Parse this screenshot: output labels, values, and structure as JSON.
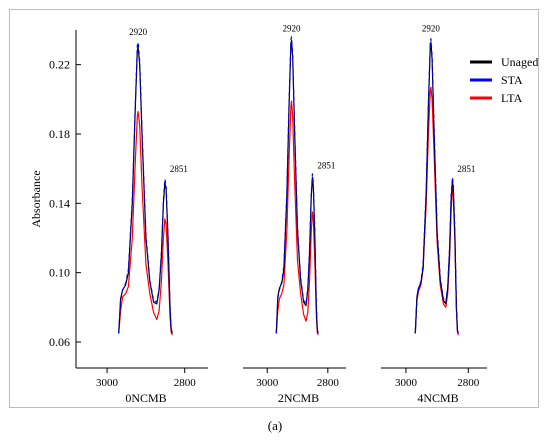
{
  "figure_caption": "(a)",
  "chart_data": {
    "type": "line",
    "ylabel": "Absorbance",
    "y_ticks": [
      0.06,
      0.1,
      0.14,
      0.18,
      0.22
    ],
    "ylim": [
      0.045,
      0.24
    ],
    "x_reversed": true,
    "legend": {
      "placement": "top-right",
      "entries": [
        {
          "name": "Unaged",
          "color": "#000000"
        },
        {
          "name": "STA",
          "color": "#0000ff"
        },
        {
          "name": "LTA",
          "color": "#ff0000"
        }
      ]
    },
    "panels": [
      {
        "xlabel": "0NCMB",
        "x_ticks": [
          3000,
          2800
        ],
        "xlim": [
          3080,
          2740
        ],
        "peak_labels": [
          {
            "text": "2920",
            "x": 2920,
            "y": 0.236
          },
          {
            "text": "2851",
            "x": 2851,
            "y": 0.157
          }
        ],
        "series": [
          {
            "name": "Unaged",
            "x": [
              2970,
              2965,
              2960,
              2952,
              2945,
              2935,
              2928,
              2922,
              2920,
              2916,
              2910,
              2900,
              2890,
              2880,
              2872,
              2866,
              2860,
              2855,
              2851,
              2848,
              2843,
              2838,
              2835,
              2832
            ],
            "y": [
              0.065,
              0.085,
              0.09,
              0.093,
              0.1,
              0.14,
              0.19,
              0.228,
              0.23,
              0.22,
              0.18,
              0.12,
              0.095,
              0.083,
              0.082,
              0.09,
              0.11,
              0.14,
              0.152,
              0.148,
              0.12,
              0.08,
              0.068,
              0.065
            ]
          },
          {
            "name": "STA",
            "x": [
              2970,
              2965,
              2960,
              2952,
              2945,
              2935,
              2928,
              2922,
              2920,
              2916,
              2910,
              2900,
              2890,
              2880,
              2872,
              2866,
              2860,
              2855,
              2851,
              2848,
              2843,
              2838,
              2835,
              2832
            ],
            "y": [
              0.065,
              0.084,
              0.09,
              0.094,
              0.102,
              0.142,
              0.192,
              0.231,
              0.233,
              0.222,
              0.182,
              0.122,
              0.096,
              0.084,
              0.083,
              0.091,
              0.112,
              0.142,
              0.154,
              0.15,
              0.122,
              0.081,
              0.068,
              0.065
            ]
          },
          {
            "name": "LTA",
            "x": [
              2970,
              2965,
              2960,
              2952,
              2945,
              2935,
              2928,
              2922,
              2920,
              2916,
              2910,
              2900,
              2890,
              2880,
              2872,
              2866,
              2860,
              2855,
              2851,
              2848,
              2843,
              2838,
              2835,
              2832
            ],
            "y": [
              0.065,
              0.078,
              0.086,
              0.088,
              0.092,
              0.12,
              0.16,
              0.19,
              0.193,
              0.185,
              0.15,
              0.105,
              0.088,
              0.077,
              0.073,
              0.078,
              0.095,
              0.12,
              0.131,
              0.128,
              0.105,
              0.075,
              0.066,
              0.064
            ]
          }
        ]
      },
      {
        "xlabel": "2NCMB",
        "x_ticks": [
          3000,
          2800
        ],
        "xlim": [
          3080,
          2740
        ],
        "peak_labels": [
          {
            "text": "2920",
            "x": 2920,
            "y": 0.238
          },
          {
            "text": "2851",
            "x": 2851,
            "y": 0.159
          }
        ],
        "series": [
          {
            "name": "Unaged",
            "x": [
              2970,
              2965,
              2960,
              2952,
              2945,
              2935,
              2928,
              2922,
              2920,
              2916,
              2910,
              2900,
              2890,
              2880,
              2872,
              2866,
              2860,
              2855,
              2851,
              2848,
              2843,
              2838,
              2835,
              2832
            ],
            "y": [
              0.065,
              0.086,
              0.091,
              0.094,
              0.102,
              0.145,
              0.195,
              0.232,
              0.234,
              0.224,
              0.184,
              0.124,
              0.096,
              0.083,
              0.081,
              0.09,
              0.112,
              0.143,
              0.155,
              0.15,
              0.122,
              0.081,
              0.068,
              0.065
            ]
          },
          {
            "name": "STA",
            "x": [
              2970,
              2965,
              2960,
              2952,
              2945,
              2935,
              2928,
              2922,
              2920,
              2916,
              2910,
              2900,
              2890,
              2880,
              2872,
              2866,
              2860,
              2855,
              2851,
              2848,
              2843,
              2838,
              2835,
              2832
            ],
            "y": [
              0.065,
              0.085,
              0.09,
              0.095,
              0.104,
              0.147,
              0.197,
              0.234,
              0.236,
              0.226,
              0.186,
              0.126,
              0.097,
              0.084,
              0.082,
              0.091,
              0.114,
              0.145,
              0.157,
              0.152,
              0.124,
              0.082,
              0.068,
              0.065
            ]
          },
          {
            "name": "LTA",
            "x": [
              2970,
              2965,
              2960,
              2952,
              2945,
              2935,
              2928,
              2922,
              2920,
              2916,
              2910,
              2900,
              2890,
              2880,
              2872,
              2866,
              2860,
              2855,
              2851,
              2848,
              2843,
              2838,
              2835,
              2832
            ],
            "y": [
              0.065,
              0.078,
              0.085,
              0.088,
              0.093,
              0.125,
              0.165,
              0.196,
              0.199,
              0.19,
              0.155,
              0.107,
              0.088,
              0.076,
              0.072,
              0.077,
              0.096,
              0.123,
              0.135,
              0.131,
              0.107,
              0.076,
              0.066,
              0.064
            ]
          }
        ]
      },
      {
        "xlabel": "4NCMB",
        "x_ticks": [
          3000,
          2800
        ],
        "xlim": [
          3080,
          2740
        ],
        "peak_labels": [
          {
            "text": "2920",
            "x": 2920,
            "y": 0.238
          },
          {
            "text": "2851",
            "x": 2851,
            "y": 0.157
          }
        ],
        "series": [
          {
            "name": "Unaged",
            "x": [
              2970,
              2965,
              2960,
              2952,
              2945,
              2935,
              2928,
              2922,
              2920,
              2916,
              2910,
              2900,
              2890,
              2880,
              2872,
              2866,
              2860,
              2855,
              2851,
              2848,
              2843,
              2838,
              2835,
              2832
            ],
            "y": [
              0.065,
              0.086,
              0.091,
              0.094,
              0.103,
              0.146,
              0.196,
              0.231,
              0.233,
              0.223,
              0.183,
              0.123,
              0.096,
              0.084,
              0.082,
              0.091,
              0.113,
              0.142,
              0.153,
              0.149,
              0.121,
              0.08,
              0.067,
              0.065
            ]
          },
          {
            "name": "STA",
            "x": [
              2970,
              2965,
              2960,
              2952,
              2945,
              2935,
              2928,
              2922,
              2920,
              2916,
              2910,
              2900,
              2890,
              2880,
              2872,
              2866,
              2860,
              2855,
              2851,
              2848,
              2843,
              2838,
              2835,
              2832
            ],
            "y": [
              0.065,
              0.085,
              0.09,
              0.095,
              0.105,
              0.148,
              0.198,
              0.233,
              0.235,
              0.225,
              0.185,
              0.125,
              0.097,
              0.085,
              0.083,
              0.092,
              0.115,
              0.144,
              0.155,
              0.151,
              0.123,
              0.081,
              0.067,
              0.065
            ]
          },
          {
            "name": "LTA",
            "x": [
              2970,
              2965,
              2960,
              2952,
              2945,
              2935,
              2928,
              2922,
              2920,
              2916,
              2910,
              2900,
              2890,
              2880,
              2872,
              2866,
              2860,
              2855,
              2851,
              2848,
              2843,
              2838,
              2835,
              2832
            ],
            "y": [
              0.065,
              0.084,
              0.089,
              0.093,
              0.102,
              0.14,
              0.18,
              0.205,
              0.207,
              0.2,
              0.17,
              0.118,
              0.093,
              0.082,
              0.08,
              0.088,
              0.108,
              0.136,
              0.148,
              0.144,
              0.118,
              0.079,
              0.066,
              0.064
            ]
          }
        ]
      }
    ]
  }
}
